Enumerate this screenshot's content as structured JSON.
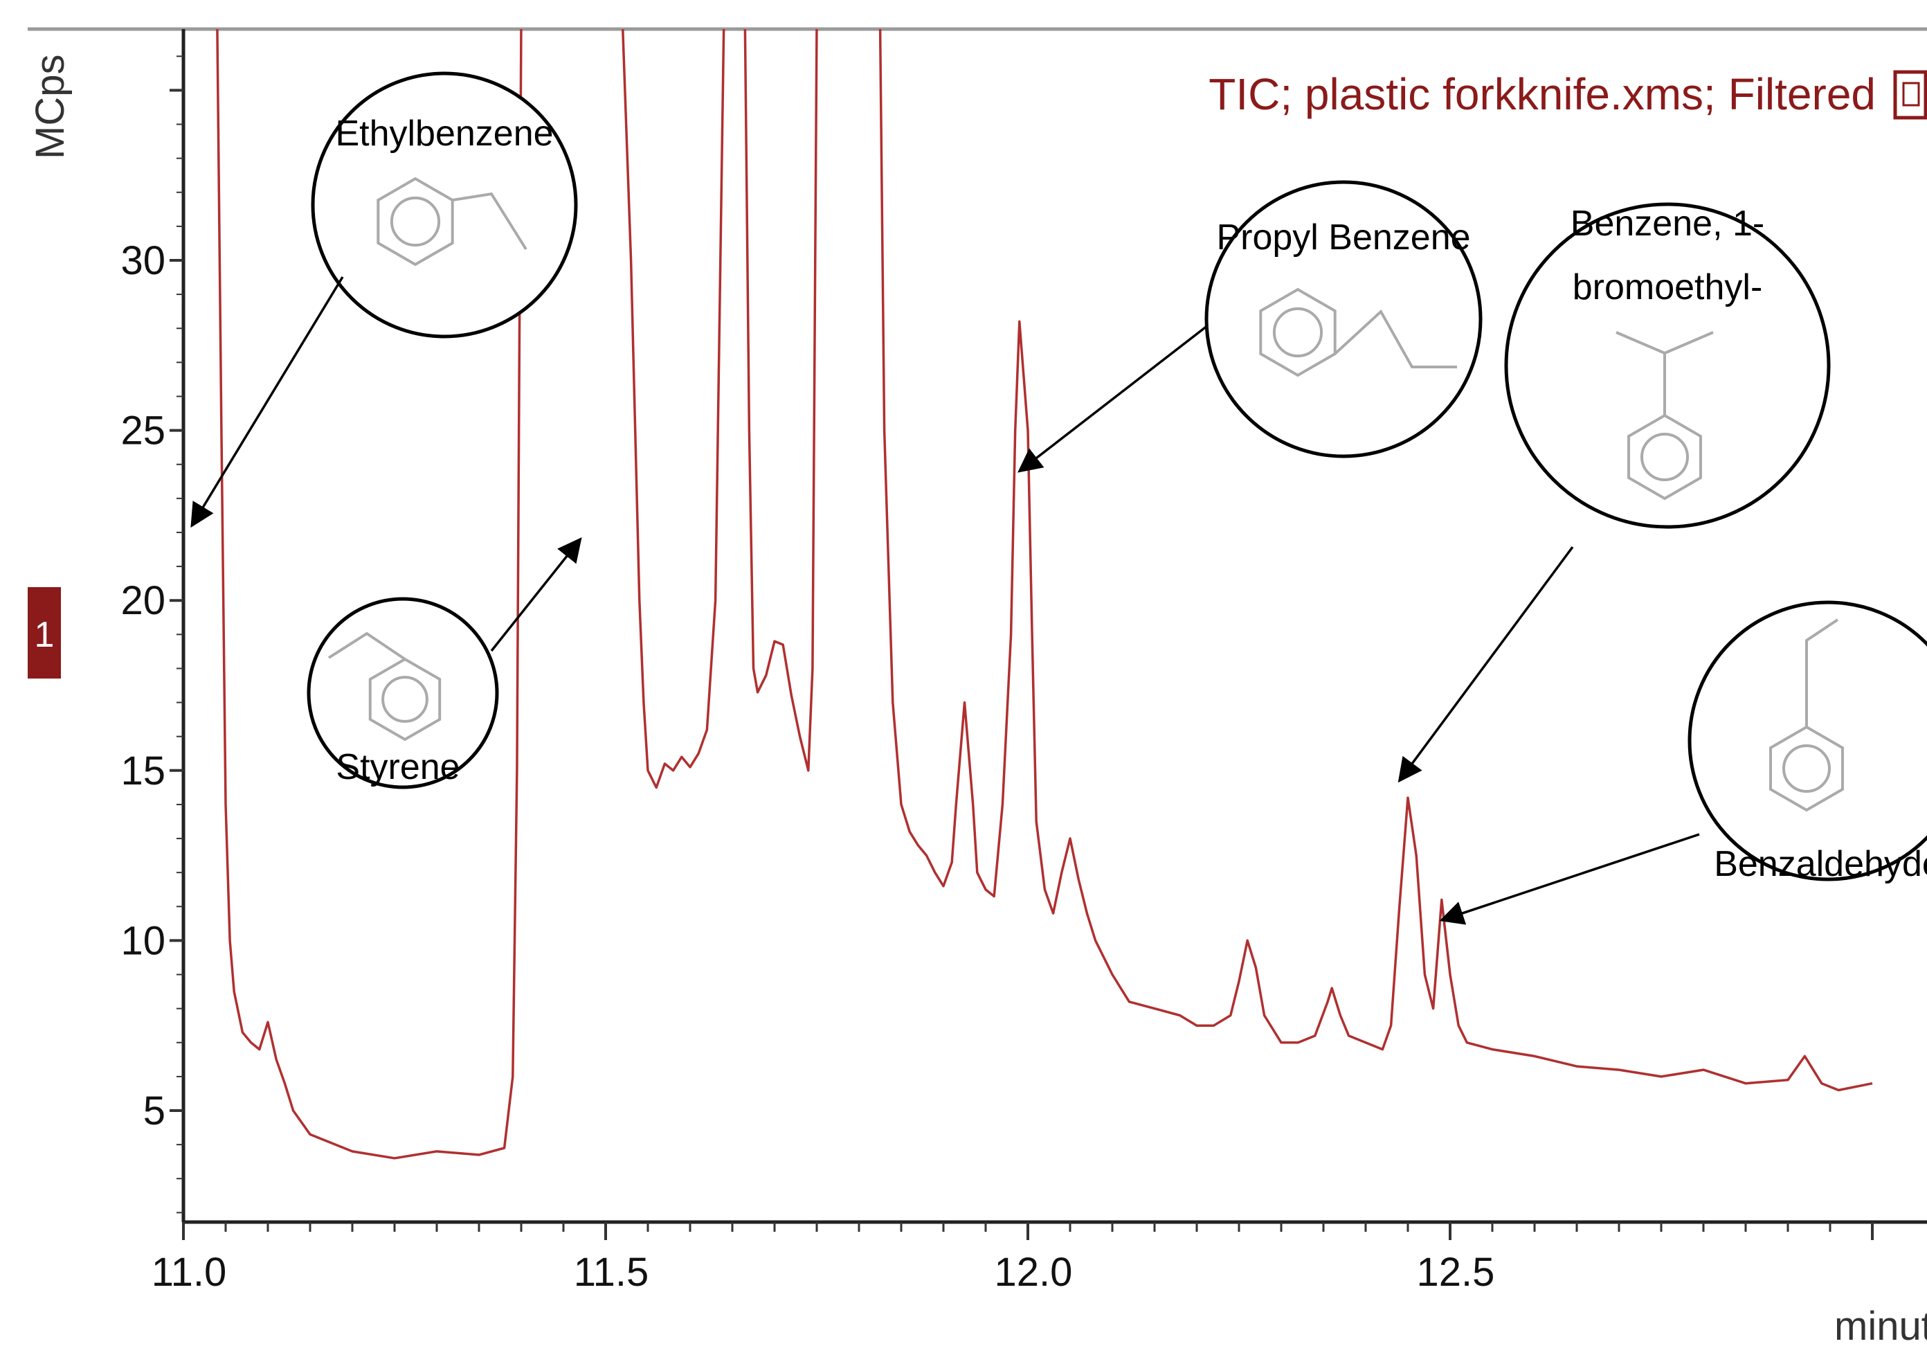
{
  "chart_data": {
    "type": "line",
    "title": "",
    "legend": {
      "text": "TIC;  plastic forkknife.xms;  Filtered",
      "placement": "top-right",
      "color": "#8b1a1a"
    },
    "ylabel": "MCps",
    "xlabel": "minutes",
    "xlim": [
      10.96,
      13.0
    ],
    "ylim": [
      1.5,
      37
    ],
    "x_ticks": [
      11.0,
      11.5,
      12.0,
      12.5
    ],
    "x_tick_labels": [
      "11.0",
      "11.5",
      "12.0",
      "12.5"
    ],
    "y_ticks": [
      5,
      10,
      15,
      20,
      25,
      30
    ],
    "y_tick_labels": [
      "5",
      "10",
      "15",
      "20",
      "25",
      "30"
    ],
    "trace_marker": "1",
    "series": [
      {
        "color": "#b03030",
        "points": [
          [
            10.96,
            3.2
          ],
          [
            10.975,
            3.5
          ],
          [
            10.985,
            4.5
          ],
          [
            10.99,
            10
          ],
          [
            10.993,
            22
          ],
          [
            10.995,
            37
          ],
          [
            11.04,
            37
          ],
          [
            11.045,
            25
          ],
          [
            11.05,
            14
          ],
          [
            11.055,
            10
          ],
          [
            11.06,
            8.5
          ],
          [
            11.07,
            7.3
          ],
          [
            11.08,
            7.0
          ],
          [
            11.09,
            6.8
          ],
          [
            11.1,
            7.6
          ],
          [
            11.11,
            6.5
          ],
          [
            11.12,
            5.8
          ],
          [
            11.13,
            5.0
          ],
          [
            11.15,
            4.3
          ],
          [
            11.2,
            3.8
          ],
          [
            11.25,
            3.6
          ],
          [
            11.3,
            3.8
          ],
          [
            11.35,
            3.7
          ],
          [
            11.38,
            3.9
          ],
          [
            11.39,
            6.0
          ],
          [
            11.395,
            15
          ],
          [
            11.4,
            37
          ],
          [
            11.52,
            37
          ],
          [
            11.53,
            30
          ],
          [
            11.54,
            20
          ],
          [
            11.545,
            17
          ],
          [
            11.55,
            15
          ],
          [
            11.56,
            14.5
          ],
          [
            11.57,
            15.2
          ],
          [
            11.58,
            15.0
          ],
          [
            11.59,
            15.4
          ],
          [
            11.6,
            15.1
          ],
          [
            11.61,
            15.5
          ],
          [
            11.62,
            16.2
          ],
          [
            11.63,
            20
          ],
          [
            11.64,
            37
          ],
          [
            11.665,
            37
          ],
          [
            11.67,
            25
          ],
          [
            11.675,
            18
          ],
          [
            11.68,
            17.3
          ],
          [
            11.69,
            17.8
          ],
          [
            11.7,
            18.8
          ],
          [
            11.71,
            18.7
          ],
          [
            11.72,
            17.2
          ],
          [
            11.73,
            16.0
          ],
          [
            11.74,
            15.0
          ],
          [
            11.745,
            18
          ],
          [
            11.75,
            37
          ],
          [
            11.825,
            37
          ],
          [
            11.83,
            25
          ],
          [
            11.84,
            17
          ],
          [
            11.85,
            14.0
          ],
          [
            11.86,
            13.2
          ],
          [
            11.87,
            12.8
          ],
          [
            11.88,
            12.5
          ],
          [
            11.89,
            12.0
          ],
          [
            11.9,
            11.6
          ],
          [
            11.91,
            12.3
          ],
          [
            11.915,
            14
          ],
          [
            11.925,
            17.0
          ],
          [
            11.935,
            14
          ],
          [
            11.94,
            12.0
          ],
          [
            11.95,
            11.5
          ],
          [
            11.96,
            11.3
          ],
          [
            11.97,
            14
          ],
          [
            11.98,
            19
          ],
          [
            11.985,
            25
          ],
          [
            11.99,
            28.2
          ],
          [
            12.0,
            25
          ],
          [
            12.005,
            19
          ],
          [
            12.01,
            13.5
          ],
          [
            12.02,
            11.5
          ],
          [
            12.03,
            10.8
          ],
          [
            12.04,
            12.0
          ],
          [
            12.05,
            13.0
          ],
          [
            12.06,
            11.8
          ],
          [
            12.07,
            10.8
          ],
          [
            12.08,
            10.0
          ],
          [
            12.1,
            9.0
          ],
          [
            12.12,
            8.2
          ],
          [
            12.15,
            8.0
          ],
          [
            12.18,
            7.8
          ],
          [
            12.2,
            7.5
          ],
          [
            12.22,
            7.5
          ],
          [
            12.24,
            7.8
          ],
          [
            12.25,
            8.8
          ],
          [
            12.26,
            10.0
          ],
          [
            12.27,
            9.2
          ],
          [
            12.28,
            7.8
          ],
          [
            12.3,
            7.0
          ],
          [
            12.32,
            7.0
          ],
          [
            12.34,
            7.2
          ],
          [
            12.355,
            8.2
          ],
          [
            12.36,
            8.6
          ],
          [
            12.37,
            7.8
          ],
          [
            12.38,
            7.2
          ],
          [
            12.4,
            7.0
          ],
          [
            12.42,
            6.8
          ],
          [
            12.43,
            7.5
          ],
          [
            12.44,
            11.0
          ],
          [
            12.45,
            14.2
          ],
          [
            12.46,
            12.5
          ],
          [
            12.47,
            9.0
          ],
          [
            12.48,
            8.0
          ],
          [
            12.49,
            11.2
          ],
          [
            12.5,
            9.0
          ],
          [
            12.51,
            7.5
          ],
          [
            12.52,
            7.0
          ],
          [
            12.55,
            6.8
          ],
          [
            12.6,
            6.6
          ],
          [
            12.65,
            6.3
          ],
          [
            12.7,
            6.2
          ],
          [
            12.75,
            6.0
          ],
          [
            12.8,
            6.2
          ],
          [
            12.85,
            5.8
          ],
          [
            12.9,
            5.9
          ],
          [
            12.92,
            6.6
          ],
          [
            12.94,
            5.8
          ],
          [
            12.96,
            5.6
          ],
          [
            13.0,
            5.8
          ]
        ]
      }
    ],
    "annotations": [
      {
        "lines": [
          "Ethylbenzene"
        ],
        "target": [
          11.01,
          22.2
        ]
      },
      {
        "lines": [
          "Styrene"
        ],
        "target": [
          11.47,
          21.8
        ]
      },
      {
        "lines": [
          "Propyl Benzene"
        ],
        "target": [
          11.99,
          23.8
        ]
      },
      {
        "lines": [
          "Benzene, 1-",
          "bromoethyl-"
        ],
        "target": [
          12.44,
          14.7
        ]
      },
      {
        "lines": [
          "Benzaldehyde"
        ],
        "target": [
          12.49,
          10.6
        ]
      }
    ]
  }
}
